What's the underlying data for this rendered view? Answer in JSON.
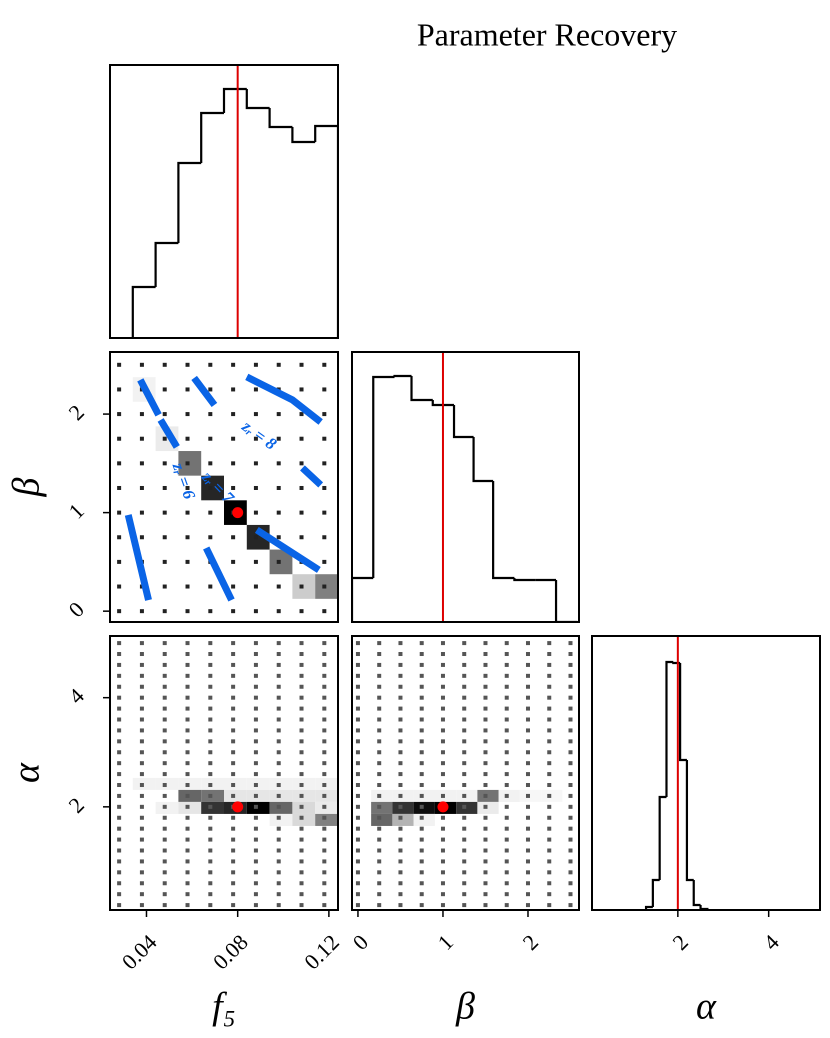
{
  "title": "Parameter Recovery",
  "chart_data": [
    {
      "type": "histogram",
      "color": "#000000",
      "truth": 0.08,
      "truth_color": "#dd0000",
      "bins": [
        0.034,
        0.044,
        0.054,
        0.064,
        0.074,
        0.084,
        0.094,
        0.104,
        0.114,
        0.124
      ],
      "values": [
        51,
        95,
        175,
        225,
        249,
        230,
        211,
        196,
        212
      ],
      "xlim": [
        0.024,
        0.124
      ],
      "ylim": [
        0,
        273
      ]
    },
    {
      "type": "heatmap",
      "truth": [
        0.08,
        1
      ],
      "truth_color": "#ff0000",
      "point_color": "#222222",
      "xlim": [
        0.024,
        0.124
      ],
      "ylim": [
        -0.11,
        2.63
      ],
      "bin_width": [
        0.01,
        0.25
      ],
      "yticks": [
        0,
        1,
        2
      ],
      "ylabel": "β",
      "points": {
        "x": [
          0.028,
          0.038,
          0.048,
          0.058,
          0.068,
          0.078,
          0.088,
          0.098,
          0.108,
          0.118
        ],
        "y": [
          0,
          0.25,
          0.5,
          0.75,
          1,
          1.25,
          1.5,
          1.75,
          2,
          2.25,
          2.5
        ]
      },
      "cells": {
        "x": [
          0.059,
          0.069,
          0.079,
          0.089,
          0.099,
          0.109,
          0.119,
          0.049,
          0.039
        ],
        "y": [
          1.5,
          1.25,
          1.0,
          0.75,
          0.5,
          0.25,
          0.25,
          1.75,
          2.25
        ],
        "z": [
          0.55,
          0.85,
          1.0,
          0.85,
          0.55,
          0.2,
          0.5,
          0.08,
          0.05
        ]
      },
      "contours": [
        {
          "label": "zᵣ = 6",
          "color": "#0a64e6",
          "x": [
            0.0373,
            0.0453,
            null,
            0.0662,
            0.0773,
            null,
            0.032,
            0.0409
          ],
          "y": [
            2.347,
            1.992,
            null,
            0.641,
            0.113,
            null,
            0.976,
            0.113
          ]
        },
        {
          "label": "zᵣ = 7",
          "color": "#0a64e6",
          "x": [
            0.0462,
            0.0533,
            null,
            0.0884,
            0.1156
          ],
          "y": [
            1.941,
            1.667,
            null,
            0.824,
            0.418
          ]
        },
        {
          "label": "zᵣ = 8",
          "color": "#0a64e6",
          "x": [
            0.0609,
            0.0698,
            null,
            0.1084,
            0.1164,
            null,
            0.084,
            0.104,
            0.1164
          ],
          "y": [
            2.367,
            2.093,
            null,
            1.453,
            1.281,
            null,
            2.377,
            2.144,
            1.92
          ]
        }
      ]
    },
    {
      "type": "histogram",
      "color": "#000000",
      "truth": 1,
      "truth_color": "#dd0000",
      "bins": [
        -0.07,
        0.18,
        0.43,
        0.63,
        0.88,
        1.13,
        1.36,
        1.59,
        1.84,
        2.09,
        2.33,
        2.58
      ],
      "values": [
        44,
        245,
        246,
        222,
        217,
        185,
        141,
        44,
        42,
        42,
        0
      ],
      "xlim": [
        -0.07,
        2.6
      ],
      "ylim": [
        0,
        270
      ]
    },
    {
      "type": "heatmap",
      "truth": [
        0.08,
        2
      ],
      "truth_color": "#ff0000",
      "point_color": "#555555",
      "xlim": [
        0.024,
        0.124
      ],
      "ylim": [
        0.11,
        5.13
      ],
      "bin_width": [
        0.01,
        0.22
      ],
      "xticks": [
        0.04,
        0.08,
        0.12
      ],
      "xlabel": "f₅",
      "yticks": [
        2,
        4
      ],
      "ylabel": "α",
      "points": {
        "x": [
          0.028,
          0.038,
          0.048,
          0.058,
          0.068,
          0.078,
          0.088,
          0.098,
          0.108,
          0.118
        ],
        "y": [
          0.2,
          0.4,
          0.6,
          0.8,
          1.0,
          1.2,
          1.4,
          1.6,
          1.8,
          2.0,
          2.2,
          2.4,
          2.6,
          2.8,
          3.0,
          3.2,
          3.4,
          3.6,
          3.8,
          4.0,
          4.2,
          4.4,
          4.6,
          4.8,
          5.0
        ]
      },
      "cells": {
        "x": [
          0.039,
          0.049,
          0.059,
          0.069,
          0.079,
          0.089,
          0.099,
          0.109,
          0.119,
          0.059,
          0.069,
          0.079,
          0.089,
          0.099,
          0.109,
          0.119,
          0.049,
          0.059,
          0.069,
          0.079,
          0.089,
          0.099,
          0.109,
          0.119,
          0.099,
          0.109,
          0.119
        ],
        "y": [
          2.42,
          2.42,
          2.42,
          2.42,
          2.42,
          2.42,
          2.42,
          2.42,
          2.42,
          2.2,
          2.2,
          2.2,
          2.2,
          2.2,
          2.2,
          2.2,
          1.98,
          1.98,
          1.98,
          1.98,
          1.98,
          1.98,
          1.98,
          1.98,
          1.76,
          1.76,
          1.76
        ],
        "z": [
          0.05,
          0.05,
          0.05,
          0.05,
          0.05,
          0.05,
          0.05,
          0.05,
          0.05,
          0.6,
          0.55,
          0.1,
          0.1,
          0.1,
          0.1,
          0.1,
          0.05,
          0.1,
          0.8,
          0.85,
          1.0,
          0.6,
          0.15,
          0.08,
          0.05,
          0.15,
          0.5
        ]
      }
    },
    {
      "type": "heatmap",
      "truth": [
        1,
        2
      ],
      "truth_color": "#ff0000",
      "point_color": "#555555",
      "xlim": [
        -0.07,
        2.6
      ],
      "ylim": [
        0.11,
        5.13
      ],
      "bin_width": [
        0.25,
        0.22
      ],
      "xticks": [
        0,
        1,
        2
      ],
      "xlabel": "β",
      "points": {
        "x": [
          0,
          0.25,
          0.5,
          0.75,
          1,
          1.25,
          1.5,
          1.75,
          2,
          2.25,
          2.5
        ],
        "y": [
          0.2,
          0.4,
          0.6,
          0.8,
          1.0,
          1.2,
          1.4,
          1.6,
          1.8,
          2.0,
          2.2,
          2.4,
          2.6,
          2.8,
          3.0,
          3.2,
          3.4,
          3.6,
          3.8,
          4.0,
          4.2,
          4.4,
          4.6,
          4.8,
          5.0
        ]
      },
      "cells": {
        "x": [
          0.28,
          0.53,
          0.78,
          1.03,
          1.28,
          1.53,
          1.78,
          2.03,
          2.28,
          0.28,
          0.53,
          0.78,
          1.03,
          1.28,
          1.53,
          0.28,
          0.53,
          0.78
        ],
        "y": [
          2.2,
          2.2,
          2.2,
          2.2,
          2.2,
          2.2,
          2.2,
          2.2,
          2.2,
          1.98,
          1.98,
          1.98,
          1.98,
          1.98,
          1.98,
          1.76,
          1.76,
          1.76
        ],
        "z": [
          0.05,
          0.05,
          0.05,
          0.05,
          0.05,
          0.55,
          0.05,
          0.03,
          0.03,
          0.55,
          0.8,
          0.95,
          1.0,
          0.8,
          0.08,
          0.6,
          0.3,
          0.05
        ]
      }
    },
    {
      "type": "histogram",
      "color": "#000000",
      "truth": 2,
      "truth_color": "#dd0000",
      "bins": [
        1.3,
        1.45,
        1.6,
        1.75,
        1.9,
        2.05,
        2.2,
        2.35,
        2.5,
        2.65
      ],
      "values": [
        3,
        30,
        113,
        248,
        247,
        150,
        30,
        5,
        1
      ],
      "xlim": [
        0.11,
        5.13
      ],
      "ylim": [
        0,
        274
      ],
      "xticks": [
        2,
        4
      ],
      "xlabel": "α"
    }
  ]
}
